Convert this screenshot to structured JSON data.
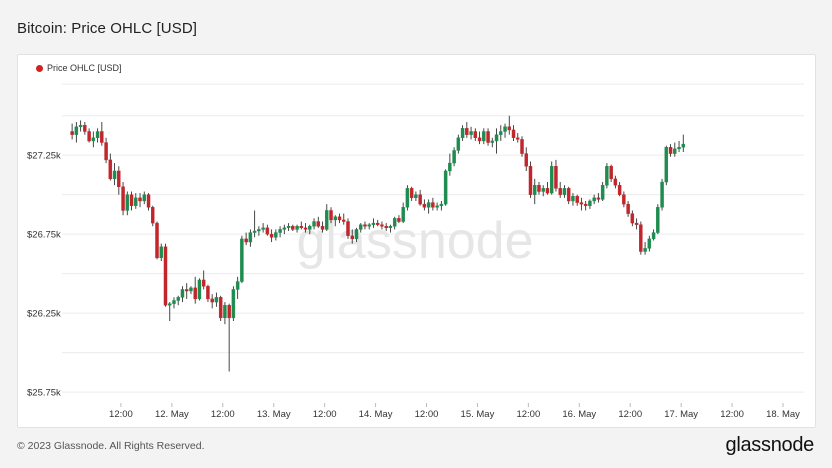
{
  "page": {
    "title": "Bitcoin: Price OHLC [USD]",
    "footer": "© 2023 Glassnode. All Rights Reserved.",
    "brand": "glassnode",
    "watermark": "glassnode"
  },
  "colors": {
    "up": "#1e8c4f",
    "down": "#c0262b",
    "wick": "#333333",
    "grid": "#ececec",
    "legend_dot": "#d42020"
  },
  "chart_data": {
    "type": "candlestick",
    "title": "Bitcoin: Price OHLC [USD]",
    "legend": [
      {
        "name": "Price OHLC [USD]",
        "placement": "top-left"
      }
    ],
    "ylim": [
      25700,
      27650
    ],
    "y_ticks": [
      25750,
      26250,
      26750,
      27250
    ],
    "y_tick_labels": [
      "$25.75k",
      "$26.25k",
      "$26.75k",
      "$27.25k"
    ],
    "grid": true,
    "x_hour_range": [
      0,
      172
    ],
    "x_ticks": [
      {
        "hour": 12,
        "label": "12:00"
      },
      {
        "hour": 24,
        "label": "12. May"
      },
      {
        "hour": 36,
        "label": "12:00"
      },
      {
        "hour": 48,
        "label": "13. May"
      },
      {
        "hour": 60,
        "label": "12:00"
      },
      {
        "hour": 72,
        "label": "14. May"
      },
      {
        "hour": 84,
        "label": "12:00"
      },
      {
        "hour": 96,
        "label": "15. May"
      },
      {
        "hour": 108,
        "label": "12:00"
      },
      {
        "hour": 120,
        "label": "16. May"
      },
      {
        "hour": 132,
        "label": "12:00"
      },
      {
        "hour": 144,
        "label": "17. May"
      },
      {
        "hour": 156,
        "label": "12:00"
      },
      {
        "hour": 168,
        "label": "18. May"
      }
    ],
    "ohlc": [
      [
        0,
        27400,
        27450,
        27350,
        27380
      ],
      [
        1,
        27380,
        27460,
        27330,
        27430
      ],
      [
        2,
        27430,
        27470,
        27400,
        27440
      ],
      [
        3,
        27440,
        27460,
        27380,
        27400
      ],
      [
        4,
        27400,
        27420,
        27330,
        27340
      ],
      [
        5,
        27340,
        27400,
        27300,
        27360
      ],
      [
        6,
        27360,
        27420,
        27330,
        27400
      ],
      [
        7,
        27400,
        27460,
        27310,
        27330
      ],
      [
        8,
        27330,
        27360,
        27200,
        27220
      ],
      [
        9,
        27220,
        27260,
        27090,
        27100
      ],
      [
        10,
        27100,
        27200,
        27060,
        27150
      ],
      [
        11,
        27150,
        27180,
        27000,
        27050
      ],
      [
        12,
        27050,
        27080,
        26870,
        26900
      ],
      [
        13,
        26900,
        27020,
        26870,
        27000
      ],
      [
        14,
        27000,
        27020,
        26900,
        26930
      ],
      [
        15,
        26930,
        27010,
        26910,
        26980
      ],
      [
        16,
        26980,
        27010,
        26920,
        26960
      ],
      [
        17,
        26960,
        27020,
        26940,
        27000
      ],
      [
        18,
        27000,
        27010,
        26900,
        26920
      ],
      [
        19,
        26920,
        26930,
        26800,
        26820
      ],
      [
        20,
        26820,
        26830,
        26590,
        26600
      ],
      [
        21,
        26600,
        26690,
        26580,
        26670
      ],
      [
        22,
        26670,
        26690,
        26290,
        26300
      ],
      [
        23,
        26300,
        26320,
        26200,
        26310
      ],
      [
        24,
        26310,
        26350,
        26280,
        26330
      ],
      [
        25,
        26330,
        26360,
        26300,
        26350
      ],
      [
        26,
        26350,
        26420,
        26320,
        26400
      ],
      [
        27,
        26400,
        26440,
        26340,
        26390
      ],
      [
        28,
        26390,
        26420,
        26370,
        26410
      ],
      [
        29,
        26410,
        26480,
        26310,
        26340
      ],
      [
        30,
        26340,
        26470,
        26330,
        26460
      ],
      [
        31,
        26460,
        26520,
        26400,
        26420
      ],
      [
        32,
        26420,
        26430,
        26320,
        26340
      ],
      [
        33,
        26340,
        26370,
        26280,
        26320
      ],
      [
        34,
        26320,
        26380,
        26290,
        26350
      ],
      [
        35,
        26350,
        26360,
        26200,
        26220
      ],
      [
        36,
        26220,
        26320,
        26180,
        26300
      ],
      [
        37,
        26300,
        26310,
        25880,
        26220
      ],
      [
        38,
        26220,
        26420,
        26200,
        26400
      ],
      [
        39,
        26400,
        26480,
        26340,
        26450
      ],
      [
        40,
        26450,
        26740,
        26440,
        26720
      ],
      [
        41,
        26720,
        26760,
        26680,
        26700
      ],
      [
        42,
        26700,
        26780,
        26670,
        26760
      ],
      [
        43,
        26760,
        26900,
        26730,
        26770
      ],
      [
        44,
        26770,
        26800,
        26740,
        26780
      ],
      [
        45,
        26780,
        26820,
        26760,
        26790
      ],
      [
        46,
        26790,
        26810,
        26740,
        26750
      ],
      [
        47,
        26750,
        26780,
        26700,
        26730
      ],
      [
        48,
        26730,
        26780,
        26710,
        26760
      ],
      [
        49,
        26760,
        26800,
        26730,
        26780
      ],
      [
        50,
        26780,
        26810,
        26750,
        26790
      ],
      [
        51,
        26790,
        26820,
        26770,
        26800
      ],
      [
        52,
        26800,
        26810,
        26770,
        26780
      ],
      [
        53,
        26780,
        26810,
        26760,
        26800
      ],
      [
        54,
        26800,
        26830,
        26780,
        26790
      ],
      [
        55,
        26790,
        26820,
        26760,
        26780
      ],
      [
        56,
        26780,
        26810,
        26750,
        26800
      ],
      [
        57,
        26800,
        26850,
        26780,
        26830
      ],
      [
        58,
        26830,
        26860,
        26790,
        26800
      ],
      [
        59,
        26800,
        26830,
        26760,
        26780
      ],
      [
        60,
        26780,
        26940,
        26770,
        26900
      ],
      [
        61,
        26900,
        26920,
        26820,
        26840
      ],
      [
        62,
        26840,
        26870,
        26800,
        26860
      ],
      [
        63,
        26860,
        26880,
        26820,
        26840
      ],
      [
        64,
        26840,
        26880,
        26810,
        26830
      ],
      [
        65,
        26830,
        26850,
        26720,
        26740
      ],
      [
        66,
        26740,
        26780,
        26690,
        26720
      ],
      [
        67,
        26720,
        26790,
        26700,
        26780
      ],
      [
        68,
        26780,
        26820,
        26760,
        26810
      ],
      [
        69,
        26810,
        26830,
        26780,
        26800
      ],
      [
        70,
        26800,
        26820,
        26780,
        26810
      ],
      [
        71,
        26810,
        26850,
        26790,
        26820
      ],
      [
        72,
        26820,
        26840,
        26800,
        26810
      ],
      [
        73,
        26810,
        26830,
        26780,
        26800
      ],
      [
        74,
        26800,
        26820,
        26770,
        26790
      ],
      [
        75,
        26790,
        26810,
        26760,
        26800
      ],
      [
        76,
        26800,
        26860,
        26780,
        26850
      ],
      [
        77,
        26850,
        26870,
        26820,
        26830
      ],
      [
        78,
        26830,
        26950,
        26820,
        26920
      ],
      [
        79,
        26920,
        27060,
        26900,
        27040
      ],
      [
        80,
        27040,
        27050,
        26960,
        26980
      ],
      [
        81,
        26980,
        27020,
        26960,
        27000
      ],
      [
        82,
        27000,
        27030,
        26930,
        26940
      ],
      [
        83,
        26940,
        26970,
        26900,
        26920
      ],
      [
        84,
        26920,
        26970,
        26880,
        26950
      ],
      [
        85,
        26950,
        26980,
        26900,
        26920
      ],
      [
        86,
        26920,
        26950,
        26900,
        26930
      ],
      [
        87,
        26930,
        26960,
        26900,
        26940
      ],
      [
        88,
        26940,
        27160,
        26930,
        27150
      ],
      [
        89,
        27150,
        27260,
        27120,
        27200
      ],
      [
        90,
        27200,
        27300,
        27180,
        27280
      ],
      [
        91,
        27280,
        27380,
        27260,
        27360
      ],
      [
        92,
        27360,
        27440,
        27340,
        27420
      ],
      [
        93,
        27420,
        27460,
        27360,
        27380
      ],
      [
        94,
        27380,
        27430,
        27350,
        27400
      ],
      [
        95,
        27400,
        27420,
        27340,
        27360
      ],
      [
        96,
        27360,
        27400,
        27320,
        27340
      ],
      [
        97,
        27340,
        27420,
        27320,
        27400
      ],
      [
        98,
        27400,
        27420,
        27310,
        27330
      ],
      [
        99,
        27330,
        27360,
        27300,
        27340
      ],
      [
        100,
        27340,
        27420,
        27260,
        27380
      ],
      [
        101,
        27380,
        27440,
        27340,
        27400
      ],
      [
        102,
        27400,
        27450,
        27360,
        27430
      ],
      [
        103,
        27430,
        27500,
        27380,
        27410
      ],
      [
        104,
        27410,
        27440,
        27340,
        27360
      ],
      [
        105,
        27360,
        27390,
        27330,
        27350
      ],
      [
        106,
        27350,
        27370,
        27240,
        27260
      ],
      [
        107,
        27260,
        27300,
        27150,
        27180
      ],
      [
        108,
        27180,
        27210,
        26980,
        27000
      ],
      [
        109,
        27000,
        27100,
        26940,
        27060
      ],
      [
        110,
        27060,
        27080,
        27000,
        27020
      ],
      [
        111,
        27020,
        27060,
        26990,
        27040
      ],
      [
        112,
        27040,
        27080,
        27000,
        27010
      ],
      [
        113,
        27010,
        27210,
        27000,
        27180
      ],
      [
        114,
        27180,
        27220,
        27020,
        27040
      ],
      [
        115,
        27040,
        27080,
        26980,
        27000
      ],
      [
        116,
        27000,
        27060,
        26980,
        27040
      ],
      [
        117,
        27040,
        27050,
        26940,
        26960
      ],
      [
        118,
        26960,
        27010,
        26930,
        26990
      ],
      [
        119,
        26990,
        27000,
        26930,
        26950
      ],
      [
        120,
        26950,
        26980,
        26900,
        26940
      ],
      [
        121,
        26940,
        26960,
        26900,
        26930
      ],
      [
        122,
        26930,
        26970,
        26910,
        26960
      ],
      [
        123,
        26960,
        27000,
        26940,
        26980
      ],
      [
        124,
        26980,
        27010,
        26950,
        26970
      ],
      [
        125,
        26970,
        27080,
        26960,
        27060
      ],
      [
        126,
        27060,
        27200,
        27040,
        27180
      ],
      [
        127,
        27180,
        27190,
        27080,
        27100
      ],
      [
        128,
        27100,
        27120,
        27040,
        27060
      ],
      [
        129,
        27060,
        27080,
        26990,
        27000
      ],
      [
        130,
        27000,
        27020,
        26920,
        26940
      ],
      [
        131,
        26940,
        26960,
        26860,
        26880
      ],
      [
        132,
        26880,
        26900,
        26800,
        26820
      ],
      [
        133,
        26820,
        26850,
        26780,
        26810
      ],
      [
        134,
        26810,
        26830,
        26620,
        26640
      ],
      [
        135,
        26640,
        26700,
        26620,
        26660
      ],
      [
        136,
        26660,
        26740,
        26640,
        26720
      ],
      [
        137,
        26720,
        26780,
        26710,
        26760
      ],
      [
        138,
        26760,
        26940,
        26750,
        26920
      ],
      [
        139,
        26920,
        27100,
        26900,
        27080
      ],
      [
        140,
        27080,
        27310,
        27060,
        27300
      ],
      [
        141,
        27300,
        27320,
        27240,
        27260
      ],
      [
        142,
        27260,
        27330,
        27240,
        27290
      ],
      [
        143,
        27290,
        27340,
        27270,
        27300
      ],
      [
        144,
        27300,
        27380,
        27270,
        27320
      ]
    ]
  }
}
